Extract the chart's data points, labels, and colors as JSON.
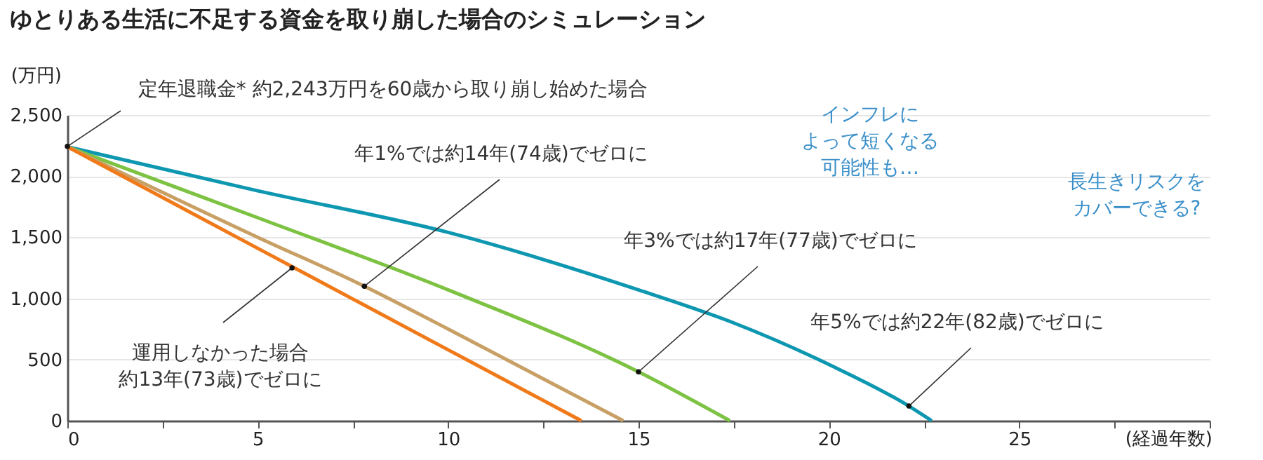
{
  "chart_data": {
    "type": "line",
    "title": "ゆとりある生活に不足する資金を取り崩した場合のシミュレーション",
    "xlabel": "(経過年数)",
    "ylabel": "(万円)",
    "xlim": [
      0,
      30
    ],
    "xticks": [
      0,
      {
        "value": 2.5,
        "label": null
      },
      5,
      {
        "value": 7.5,
        "label": null
      },
      10,
      {
        "value": 12.5,
        "label": null
      },
      15,
      {
        "value": 17.5,
        "label": null
      },
      20,
      {
        "value": 22.5,
        "label": null
      },
      25,
      {
        "value": 27.5,
        "label": null
      },
      {
        "value": 30,
        "label": null
      }
    ],
    "ylim": [
      0,
      2500
    ],
    "yticks": [
      0,
      500,
      {
        "value": 1000,
        "label": "1,000"
      },
      {
        "value": 1500,
        "label": "1,500"
      },
      {
        "value": 2000,
        "label": "2,000"
      },
      {
        "value": 2500,
        "label": "2,500"
      }
    ],
    "grid": "y",
    "legend": false,
    "marker": "none",
    "line_style": "solid",
    "series": [
      {
        "color": "#0e97b0",
        "x": [
          0,
          5,
          10,
          15,
          17.5,
          20,
          22.1,
          22.7
        ],
        "values": [
          2240,
          1880,
          1540,
          1070,
          800,
          460,
          120,
          0
        ]
      },
      {
        "color": "#7dc242",
        "x": [
          0,
          5,
          10,
          15,
          17.4
        ],
        "values": [
          2240,
          1660,
          1070,
          400,
          0
        ]
      },
      {
        "color": "#c8a065",
        "x": [
          0,
          5,
          7.8,
          10,
          14.6
        ],
        "values": [
          2240,
          1500,
          1100,
          750,
          0
        ]
      },
      {
        "color": "#f07a1a",
        "x": [
          0,
          5,
          10,
          13.5
        ],
        "values": [
          2240,
          1410,
          580,
          0
        ]
      }
    ],
    "annotations": [
      {
        "text": "定年退職金* 約2,243万円を60歳から取り崩し始めた場合",
        "x": 0,
        "y": 2243
      },
      {
        "text": "年1%では約14年(74歳)でゼロに",
        "x": 7.8,
        "y": 1100
      },
      {
        "text": "年3%では約17年(77歳)でゼロに",
        "x": 15,
        "y": 400
      },
      {
        "text": "年5%では約22年(82歳)でゼロに",
        "x": 22.1,
        "y": 120
      },
      {
        "text": "運用しなかった場合約13年(73歳)でゼロに",
        "x": 5.9,
        "y": 1250
      },
      "インフレによって短くなる可能性も…",
      "長生きリスクをカバーできる?"
    ]
  }
}
